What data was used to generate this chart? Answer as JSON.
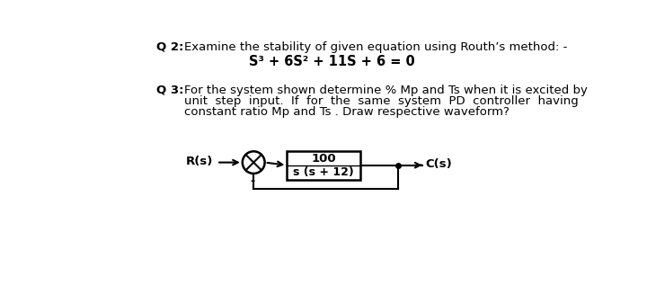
{
  "bg_color": "#ffffff",
  "text_color": "#000000",
  "q2_label": "Q 2:",
  "q2_text1": "Examine the stability of given equation using Routh’s method: -",
  "q2_equation": "S³ + 6S² + 11S + 6 = 0",
  "q3_label": "Q 3:",
  "q3_line1": "For the system shown determine % Mp and Ts when it is excited by",
  "q3_line2": "unit  step  input.  If  for  the  same  system  PD  controller  having",
  "q3_line3": "constant ratio Mp and Ts . Draw respective waveform?",
  "rs_label": "R(s)",
  "cs_label": "C(s)",
  "block_top": "100",
  "block_bot": "s (s + 12)",
  "minus_label": "-"
}
